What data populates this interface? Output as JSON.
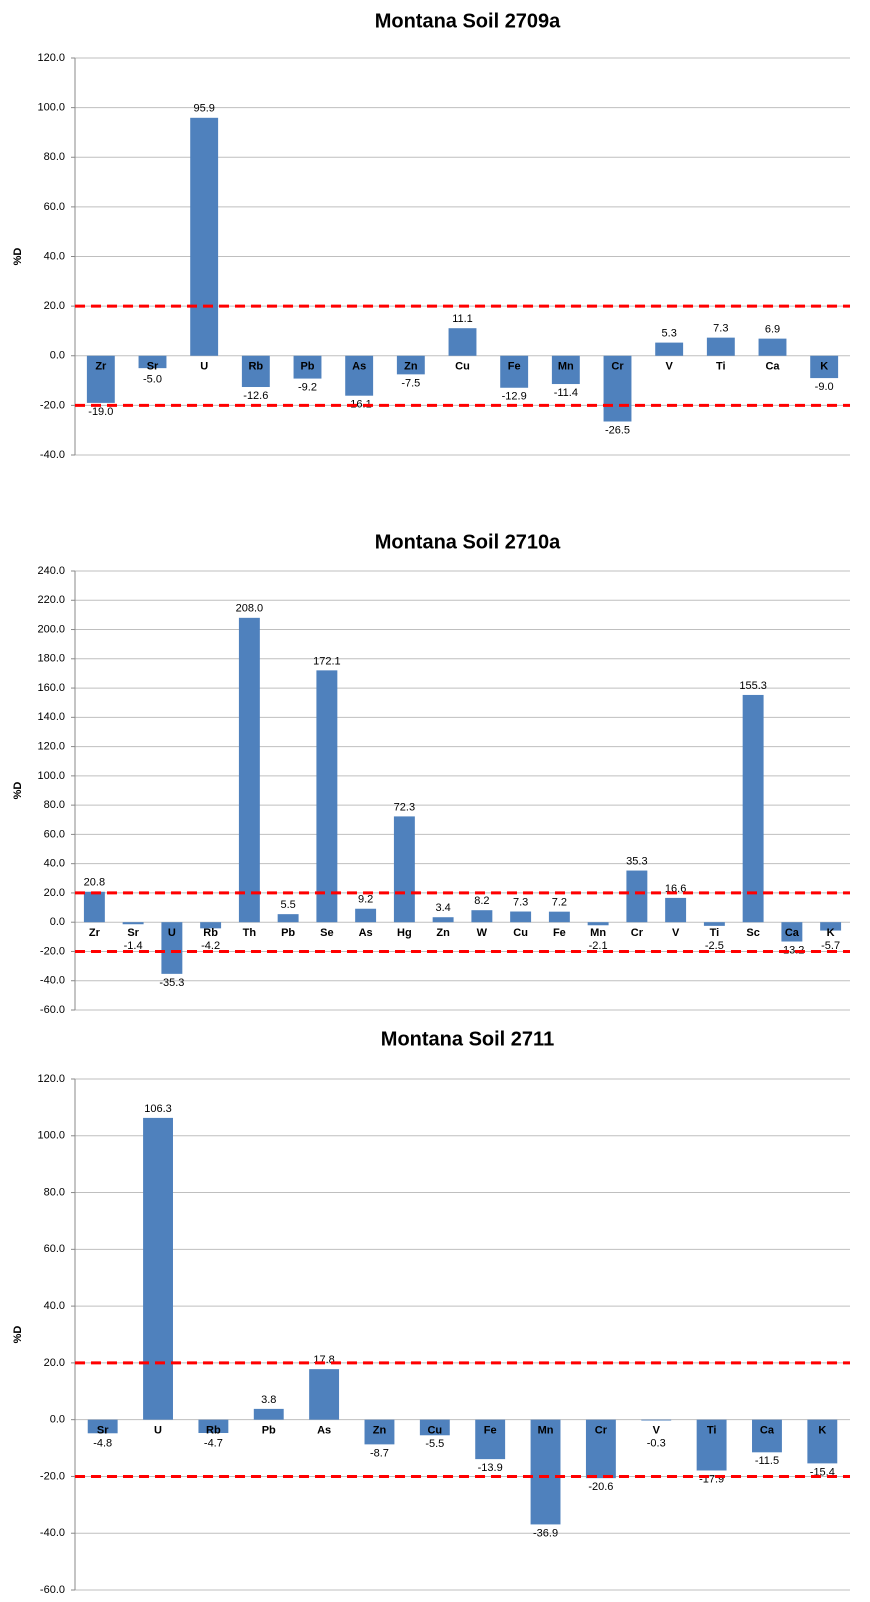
{
  "chart_data": [
    {
      "type": "bar",
      "title": "Montana Soil 2709a",
      "ylabel": "%D",
      "color": "#4f81bd",
      "grid": true,
      "categories": [
        "Zr",
        "Sr",
        "U",
        "Rb",
        "Pb",
        "As",
        "Zn",
        "Cu",
        "Fe",
        "Mn",
        "Cr",
        "V",
        "Ti",
        "Ca",
        "K"
      ],
      "values": [
        -19.0,
        -5.0,
        95.9,
        -12.6,
        -9.2,
        -16.1,
        -7.5,
        11.1,
        -12.9,
        -11.4,
        -26.5,
        5.3,
        7.3,
        6.9,
        -9.0
      ],
      "value_labels": [
        "-19.0",
        "-5.0",
        "95.9",
        "-12.6",
        "-9.2",
        "-16.1",
        "-7.5",
        "11.1",
        "-12.9",
        "-11.4",
        "-26.5",
        "5.3",
        "7.3",
        "6.9",
        "-9.0"
      ],
      "ylim": [
        -40,
        120
      ],
      "yticks": [
        {
          "value": -40,
          "label": "-40.0"
        },
        {
          "value": -20,
          "label": "-20.0"
        },
        {
          "value": 0,
          "label": "0.0"
        },
        {
          "value": 20,
          "label": "20.0"
        },
        {
          "value": 40,
          "label": "40.0"
        },
        {
          "value": 60,
          "label": "60.0"
        },
        {
          "value": 80,
          "label": "80.0"
        },
        {
          "value": 100,
          "label": "100.0"
        },
        {
          "value": 120,
          "label": "120.0"
        }
      ],
      "hlines": [
        20,
        -20
      ],
      "hline_color": "#ff0000"
    },
    {
      "type": "bar",
      "title": "Montana Soil 2710a",
      "ylabel": "%D",
      "color": "#4f81bd",
      "grid": true,
      "categories": [
        "Zr",
        "Sr",
        "U",
        "Rb",
        "Th",
        "Pb",
        "Se",
        "As",
        "Hg",
        "Zn",
        "W",
        "Cu",
        "Fe",
        "Mn",
        "Cr",
        "V",
        "Ti",
        "Sc",
        "Ca",
        "K"
      ],
      "values": [
        20.8,
        -1.4,
        -35.3,
        -4.2,
        208.0,
        5.5,
        172.1,
        9.2,
        72.3,
        3.4,
        8.2,
        7.3,
        7.2,
        -2.1,
        35.3,
        16.6,
        -2.5,
        155.3,
        -13.2,
        -5.7
      ],
      "value_labels": [
        "20.8",
        "-1.4",
        "-35.3",
        "-4.2",
        "208.0",
        "5.5",
        "172.1",
        "9.2",
        "72.3",
        "3.4",
        "8.2",
        "7.3",
        "7.2",
        "-2.1",
        "35.3",
        "16.6",
        "-2.5",
        "155.3",
        "-13.2",
        "-5.7"
      ],
      "ylim": [
        -60,
        240
      ],
      "yticks": [
        {
          "value": -60,
          "label": "-60.0"
        },
        {
          "value": -40,
          "label": "-40.0"
        },
        {
          "value": -20,
          "label": "-20.0"
        },
        {
          "value": 0,
          "label": "0.0"
        },
        {
          "value": 20,
          "label": "20.0"
        },
        {
          "value": 40,
          "label": "40.0"
        },
        {
          "value": 60,
          "label": "60.0"
        },
        {
          "value": 80,
          "label": "80.0"
        },
        {
          "value": 100,
          "label": "100.0"
        },
        {
          "value": 120,
          "label": "120.0"
        },
        {
          "value": 140,
          "label": "140.0"
        },
        {
          "value": 160,
          "label": "160.0"
        },
        {
          "value": 180,
          "label": "180.0"
        },
        {
          "value": 200,
          "label": "200.0"
        },
        {
          "value": 220,
          "label": "220.0"
        },
        {
          "value": 240,
          "label": "240.0"
        }
      ],
      "hlines": [
        20,
        -20
      ],
      "hline_color": "#ff0000"
    },
    {
      "type": "bar",
      "title": "Montana Soil 2711",
      "ylabel": "%D",
      "color": "#4f81bd",
      "grid": true,
      "categories": [
        "Sr",
        "U",
        "Rb",
        "Pb",
        "As",
        "Zn",
        "Cu",
        "Fe",
        "Mn",
        "Cr",
        "V",
        "Ti",
        "Ca",
        "K"
      ],
      "values": [
        -4.8,
        106.3,
        -4.7,
        3.8,
        17.8,
        -8.7,
        -5.5,
        -13.9,
        -36.9,
        -20.6,
        -0.3,
        -17.9,
        -11.5,
        -15.4
      ],
      "value_labels": [
        "-4.8",
        "106.3",
        "-4.7",
        "3.8",
        "17.8",
        "-8.7",
        "-5.5",
        "-13.9",
        "-36.9",
        "-20.6",
        "-0.3",
        "-17.9",
        "-11.5",
        "-15.4"
      ],
      "ylim": [
        -60,
        120
      ],
      "yticks": [
        {
          "value": -60,
          "label": "-60.0"
        },
        {
          "value": -40,
          "label": "-40.0"
        },
        {
          "value": -20,
          "label": "-20.0"
        },
        {
          "value": 0,
          "label": "0.0"
        },
        {
          "value": 20,
          "label": "20.0"
        },
        {
          "value": 40,
          "label": "40.0"
        },
        {
          "value": 60,
          "label": "60.0"
        },
        {
          "value": 80,
          "label": "80.0"
        },
        {
          "value": 100,
          "label": "100.0"
        },
        {
          "value": 120,
          "label": "120.0"
        }
      ],
      "hlines": [
        20,
        -20
      ],
      "hline_color": "#ff0000"
    }
  ]
}
